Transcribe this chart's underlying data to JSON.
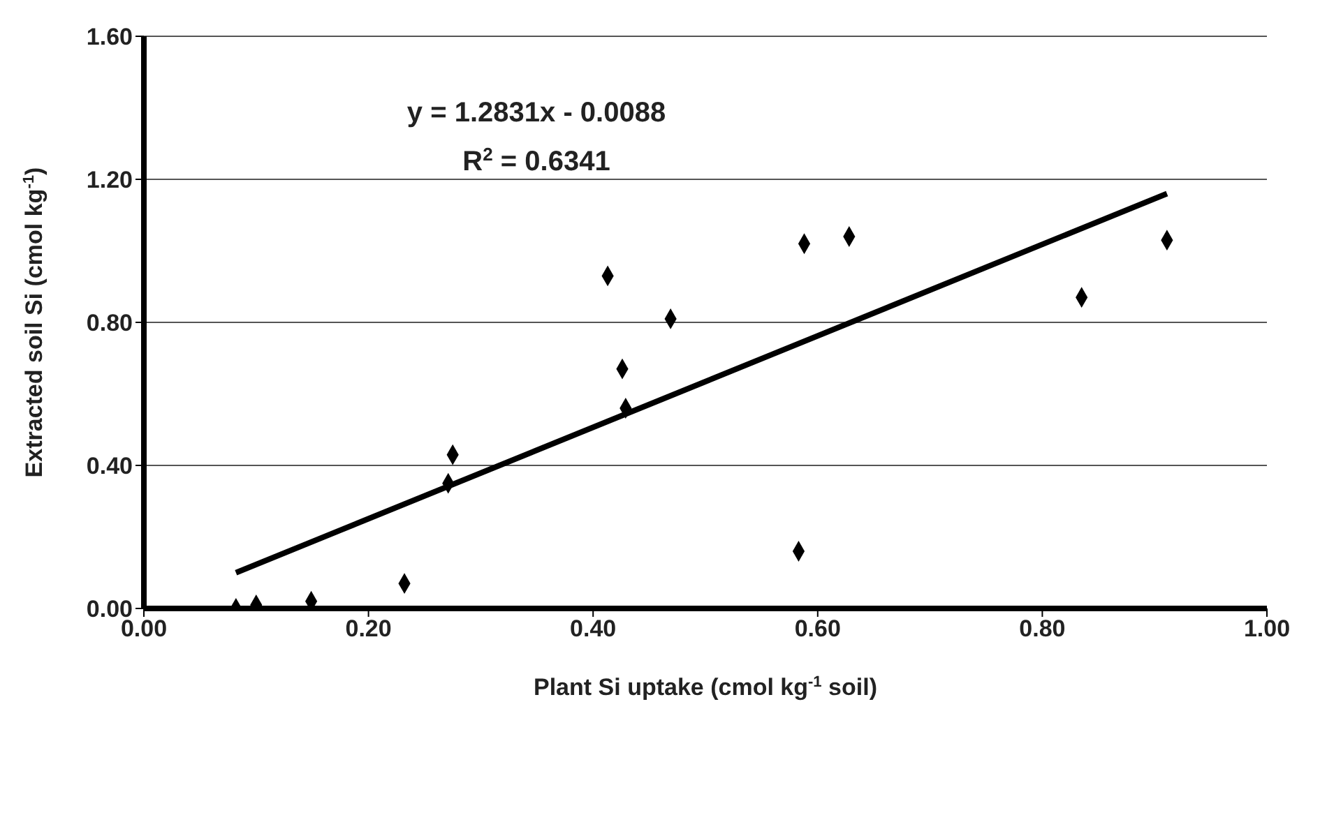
{
  "chart_data": {
    "type": "scatter",
    "xlabel": "Plant Si uptake (cmol kg$^{-1}$ soil)",
    "ylabel": "Extracted soil Si (cmol kg$^{-1}$)",
    "annotations": [
      "y = 1.2831x - 0.0088",
      "R$^{2}$ = 0.6341"
    ],
    "xlim": [
      0,
      1
    ],
    "ylim": [
      0,
      1.6
    ],
    "xticks": [
      {
        "value": 0,
        "label": "0.00"
      },
      {
        "value": 0.2,
        "label": "0.20"
      },
      {
        "value": 0.4,
        "label": "0.40"
      },
      {
        "value": 0.6,
        "label": "0.60"
      },
      {
        "value": 0.8,
        "label": "0.80"
      },
      {
        "value": 1,
        "label": "1.00"
      }
    ],
    "yticks": [
      {
        "value": 0,
        "label": "0.00"
      },
      {
        "value": 0.4,
        "label": "0.40"
      },
      {
        "value": 0.8,
        "label": "0.80"
      },
      {
        "value": 1.2,
        "label": "1.20"
      },
      {
        "value": 1.6,
        "label": "1.60"
      }
    ],
    "grid": "y",
    "series": [
      {
        "marker": "diamond",
        "color": "#000000",
        "x": [
          0.082,
          0.1,
          0.149,
          0.232,
          0.271,
          0.275,
          0.413,
          0.426,
          0.429,
          0.469,
          0.583,
          0.588,
          0.628,
          0.835,
          0.911
        ],
        "values": [
          0.0,
          0.01,
          0.02,
          0.07,
          0.35,
          0.43,
          0.93,
          0.67,
          0.56,
          0.81,
          0.16,
          1.02,
          1.04,
          0.87,
          1.03
        ]
      },
      {
        "type": "line",
        "color": "#000000",
        "line_style": "solid",
        "x": [
          0.082,
          0.911
        ],
        "values": [
          0.1,
          1.16
        ]
      }
    ]
  }
}
